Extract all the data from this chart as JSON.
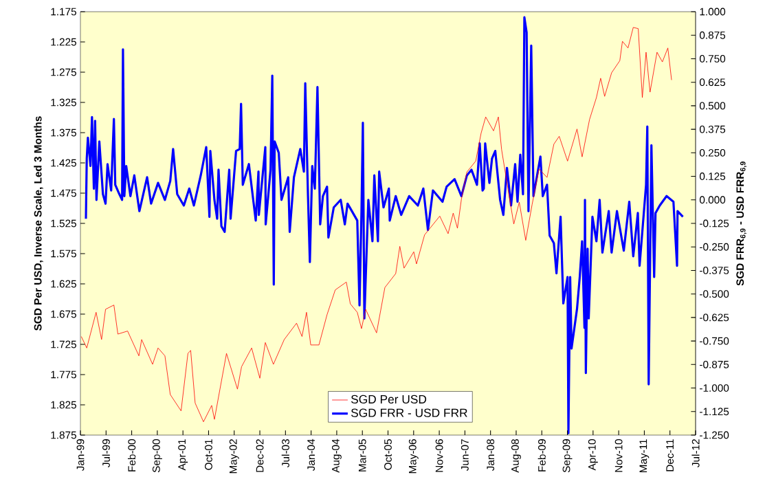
{
  "chart_data": {
    "type": "line",
    "ylabel": "SGD Per USD, Inverse Scale, Led 3 Months",
    "y2label": "SGD FRR$_{6,9}$ - USD FRR$_{6,9}$",
    "legend": "bottom",
    "xlim": [
      "1999-01-01",
      "2012-07-15"
    ],
    "xticks": [
      {
        "value": "1999-01-01",
        "label": "Jan-99"
      },
      {
        "value": "1999-07-26",
        "label": "Jul-99"
      },
      {
        "value": "2000-02-17",
        "label": "Feb-00"
      },
      {
        "value": "2000-09-10",
        "label": "Sep-00"
      },
      {
        "value": "2001-04-04",
        "label": "Apr-01"
      },
      {
        "value": "2001-10-27",
        "label": "Oct-01"
      },
      {
        "value": "2002-05-21",
        "label": "May-02"
      },
      {
        "value": "2002-12-13",
        "label": "Dec-02"
      },
      {
        "value": "2003-07-07",
        "label": "Jul-03"
      },
      {
        "value": "2004-01-29",
        "label": "Jan-04"
      },
      {
        "value": "2004-08-22",
        "label": "Aug-04"
      },
      {
        "value": "2005-03-16",
        "label": "Mar-05"
      },
      {
        "value": "2005-10-08",
        "label": "Oct-05"
      },
      {
        "value": "2006-05-02",
        "label": "May-06"
      },
      {
        "value": "2006-11-24",
        "label": "Nov-06"
      },
      {
        "value": "2007-06-18",
        "label": "Jun-07"
      },
      {
        "value": "2008-01-10",
        "label": "Jan-08"
      },
      {
        "value": "2008-08-03",
        "label": "Aug-08"
      },
      {
        "value": "2009-02-25",
        "label": "Feb-09"
      },
      {
        "value": "2009-09-19",
        "label": "Sep-09"
      },
      {
        "value": "2010-04-13",
        "label": "Apr-10"
      },
      {
        "value": "2010-11-05",
        "label": "Nov-10"
      },
      {
        "value": "2011-05-30",
        "label": "May-11"
      },
      {
        "value": "2011-12-22",
        "label": "Dec-11"
      },
      {
        "value": "2012-07-15",
        "label": "Jul-12"
      }
    ],
    "ylim": [
      1.875,
      1.175
    ],
    "yticks": [
      1.175,
      1.225,
      1.275,
      1.325,
      1.375,
      1.425,
      1.475,
      1.525,
      1.575,
      1.625,
      1.675,
      1.725,
      1.775,
      1.825,
      1.875
    ],
    "y2lim": [
      -1.25,
      1.0
    ],
    "y2ticks": [
      {
        "value": 1.0,
        "label": "1.000"
      },
      {
        "value": 0.875,
        "label": "0.875"
      },
      {
        "value": 0.75,
        "label": "0.750"
      },
      {
        "value": 0.625,
        "label": "0.625"
      },
      {
        "value": 0.5,
        "label": "0.500"
      },
      {
        "value": 0.375,
        "label": "0.375"
      },
      {
        "value": 0.25,
        "label": "0.250"
      },
      {
        "value": 0.125,
        "label": "0.125"
      },
      {
        "value": 0.0,
        "label": "0.000"
      },
      {
        "value": -0.125,
        "label": "-0.125"
      },
      {
        "value": -0.25,
        "label": "-0.250"
      },
      {
        "value": -0.375,
        "label": "-0.375"
      },
      {
        "value": -0.5,
        "label": "-0.500"
      },
      {
        "value": -0.625,
        "label": "-0.625"
      },
      {
        "value": -0.75,
        "label": "-0.750"
      },
      {
        "value": -0.875,
        "label": "-0.875"
      },
      {
        "value": -1.0,
        "label": "-1.000"
      },
      {
        "value": -1.125,
        "label": "-1.125"
      },
      {
        "value": -1.25,
        "label": "-1.250"
      }
    ],
    "series": [
      {
        "name": "SGD Per USD",
        "color": "#ff0000",
        "x": [
          "1999-01-08",
          "1999-02-21",
          "1999-05-07",
          "1999-06-20",
          "1999-07-22",
          "1999-09-27",
          "1999-10-29",
          "2000-01-15",
          "2000-04-15",
          "2000-05-07",
          "2000-08-03",
          "2000-09-16",
          "2000-11-10",
          "2000-12-23",
          "2001-03-20",
          "2001-05-14",
          "2001-06-05",
          "2001-07-11",
          "2001-09-16",
          "2001-11-21",
          "2001-12-13",
          "2002-03-20",
          "2002-06-16",
          "2002-07-19",
          "2002-10-08",
          "2002-12-13",
          "2003-01-26",
          "2003-04-01",
          "2003-06-27",
          "2003-10-04",
          "2003-11-17",
          "2003-12-23",
          "2004-01-26",
          "2004-04-01",
          "2004-06-05",
          "2004-08-10",
          "2004-11-07",
          "2004-12-09",
          "2005-02-03",
          "2005-03-09",
          "2005-04-11",
          "2005-07-08",
          "2005-09-13",
          "2005-12-09",
          "2006-01-11",
          "2006-02-14",
          "2006-05-03",
          "2006-05-25",
          "2006-07-29",
          "2006-11-28",
          "2007-02-03",
          "2007-03-16",
          "2007-04-19",
          "2007-05-21",
          "2007-07-04",
          "2007-09-13",
          "2007-10-26",
          "2007-12-02",
          "2008-02-03",
          "2008-03-13",
          "2008-04-08",
          "2008-05-21",
          "2008-07-15",
          "2008-08-28",
          "2008-10-19",
          "2008-12-09",
          "2009-02-03",
          "2009-04-08",
          "2009-06-02",
          "2009-07-15",
          "2009-09-20",
          "2009-12-05",
          "2010-01-15",
          "2010-03-16",
          "2010-05-10",
          "2010-06-13",
          "2010-07-15",
          "2010-09-09",
          "2010-11-14",
          "2010-12-05",
          "2011-01-19",
          "2011-03-02",
          "2011-04-11",
          "2011-05-14",
          "2011-06-13",
          "2011-07-15",
          "2011-09-09",
          "2011-10-22",
          "2011-12-05",
          "2012-01-04"
        ],
        "values": [
          1.712,
          1.731,
          1.672,
          1.717,
          1.667,
          1.66,
          1.708,
          1.703,
          1.744,
          1.717,
          1.758,
          1.731,
          1.744,
          1.808,
          1.835,
          1.74,
          1.735,
          1.822,
          1.853,
          1.826,
          1.849,
          1.74,
          1.799,
          1.762,
          1.731,
          1.781,
          1.722,
          1.758,
          1.717,
          1.69,
          1.712,
          1.672,
          1.726,
          1.726,
          1.676,
          1.635,
          1.622,
          1.658,
          1.672,
          1.699,
          1.667,
          1.706,
          1.631,
          1.608,
          1.563,
          1.599,
          1.572,
          1.592,
          1.544,
          1.513,
          1.542,
          1.508,
          1.533,
          1.485,
          1.44,
          1.422,
          1.376,
          1.349,
          1.372,
          1.349,
          1.403,
          1.458,
          1.526,
          1.49,
          1.553,
          1.494,
          1.435,
          1.449,
          1.394,
          1.381,
          1.422,
          1.369,
          1.415,
          1.353,
          1.317,
          1.285,
          1.315,
          1.276,
          1.256,
          1.224,
          1.235,
          1.201,
          1.203,
          1.317,
          1.242,
          1.308,
          1.242,
          1.258,
          1.235,
          1.288
        ]
      },
      {
        "name": "SGD FRR - USD FRR",
        "color": "#0000ff",
        "axis": "y2",
        "x": [
          "1999-02-14",
          "1999-02-21",
          "1999-03-02",
          "1999-03-23",
          "1999-04-04",
          "1999-04-19",
          "1999-04-29",
          "1999-05-10",
          "1999-06-02",
          "1999-07-01",
          "1999-07-22",
          "1999-08-07",
          "1999-09-05",
          "1999-09-27",
          "1999-10-08",
          "1999-11-10",
          "1999-12-02",
          "1999-12-09",
          "1999-12-20",
          "2000-01-04",
          "2000-02-07",
          "2000-03-09",
          "2000-04-19",
          "2000-06-20",
          "2000-07-22",
          "2000-09-16",
          "2000-11-10",
          "2000-12-23",
          "2001-01-15",
          "2001-02-17",
          "2001-04-11",
          "2001-05-25",
          "2001-07-01",
          "2001-08-25",
          "2001-10-08",
          "2001-11-03",
          "2001-11-10",
          "2001-12-13",
          "2002-01-04",
          "2002-01-15",
          "2002-02-07",
          "2002-03-05",
          "2002-04-11",
          "2002-04-22",
          "2002-06-05",
          "2002-07-04",
          "2002-07-15",
          "2002-07-29",
          "2002-09-16",
          "2002-11-10",
          "2002-12-02",
          "2002-12-05",
          "2003-01-26",
          "2003-01-29",
          "2003-03-09",
          "2003-03-23",
          "2003-04-04",
          "2003-04-11",
          "2003-05-14",
          "2003-06-05",
          "2003-07-29",
          "2003-08-10",
          "2003-09-13",
          "2003-11-03",
          "2003-12-02",
          "2003-12-13",
          "2004-01-04",
          "2004-01-19",
          "2004-02-07",
          "2004-02-28",
          "2004-03-20",
          "2004-04-11",
          "2004-05-03",
          "2004-06-05",
          "2004-06-16",
          "2004-07-29",
          "2004-09-23",
          "2004-10-26",
          "2004-11-17",
          "2005-02-03",
          "2005-02-21",
          "2005-03-09",
          "2005-03-20",
          "2005-04-01",
          "2005-05-03",
          "2005-06-05",
          "2005-06-20",
          "2005-07-19",
          "2005-07-29",
          "2005-09-02",
          "2005-10-15",
          "2005-10-22",
          "2005-12-09",
          "2006-01-22",
          "2006-03-27",
          "2006-06-05",
          "2006-07-19",
          "2006-08-25",
          "2006-10-04",
          "2006-12-20",
          "2007-01-22",
          "2007-03-27",
          "2007-05-21",
          "2007-07-04",
          "2007-08-10",
          "2007-09-23",
          "2007-10-15",
          "2007-11-07",
          "2007-11-17",
          "2007-11-28",
          "2008-01-01",
          "2008-01-22",
          "2008-02-17",
          "2008-03-27",
          "2008-04-22",
          "2008-05-21",
          "2008-06-23",
          "2008-07-26",
          "2008-08-14",
          "2008-09-05",
          "2008-09-27",
          "2008-10-08",
          "2008-10-26",
          "2008-11-10",
          "2008-12-02",
          "2008-12-20",
          "2009-02-14",
          "2009-03-05",
          "2009-04-08",
          "2009-04-29",
          "2009-06-02",
          "2009-06-23",
          "2009-07-26",
          "2009-08-17",
          "2009-09-20",
          "2009-09-27",
          "2009-10-11",
          "2009-10-22",
          "2009-12-05",
          "2009-12-27",
          "2010-01-15",
          "2010-02-03",
          "2010-02-07",
          "2010-02-14",
          "2010-02-28",
          "2010-03-09",
          "2010-04-08",
          "2010-05-10",
          "2010-06-05",
          "2010-06-27",
          "2010-08-17",
          "2010-09-09",
          "2010-10-22",
          "2010-12-16",
          "2011-01-29",
          "2011-03-02",
          "2011-04-08",
          "2011-04-22",
          "2011-06-13",
          "2011-06-23",
          "2011-07-04",
          "2011-07-26",
          "2011-08-17",
          "2011-08-28",
          "2011-10-01",
          "2011-11-25",
          "2012-01-19",
          "2012-02-17",
          "2012-02-21",
          "2012-04-04"
        ],
        "values": [
          -0.1,
          0.22,
          0.33,
          0.18,
          0.44,
          0.06,
          0.42,
          0.0,
          0.31,
          0.03,
          -0.02,
          0.19,
          0.05,
          0.43,
          0.08,
          0.03,
          0.0,
          0.8,
          0.02,
          0.18,
          0.02,
          0.13,
          -0.06,
          0.12,
          -0.02,
          0.09,
          0.0,
          0.1,
          0.27,
          0.03,
          -0.03,
          0.06,
          -0.03,
          0.13,
          0.28,
          -0.09,
          0.26,
          0.0,
          -0.1,
          0.16,
          -0.14,
          -0.17,
          0.16,
          -0.1,
          0.26,
          0.27,
          0.51,
          0.08,
          0.19,
          -0.11,
          0.15,
          -0.08,
          0.28,
          -0.13,
          0.16,
          0.66,
          -0.45,
          0.31,
          0.25,
          0.0,
          0.12,
          -0.17,
          0.12,
          0.27,
          0.15,
          0.62,
          0.02,
          -0.33,
          0.18,
          0.06,
          0.6,
          -0.13,
          0.02,
          0.07,
          -0.2,
          -0.04,
          0.0,
          -0.13,
          -0.02,
          -0.11,
          -0.56,
          -0.06,
          0.41,
          -0.63,
          0.0,
          -0.22,
          0.13,
          -0.22,
          0.15,
          -0.04,
          0.06,
          -0.11,
          0.02,
          -0.08,
          0.02,
          -0.03,
          0.06,
          -0.16,
          0.05,
          -0.01,
          0.07,
          0.11,
          0.02,
          0.13,
          0.16,
          0.08,
          0.3,
          0.05,
          0.06,
          0.3,
          0.09,
          0.22,
          0.26,
          0.0,
          -0.08,
          0.17,
          -0.03,
          0.19,
          -0.01,
          0.24,
          0.03,
          0.97,
          0.89,
          -0.06,
          0.82,
          0.02,
          0.23,
          0.02,
          0.08,
          -0.19,
          -0.23,
          -0.39,
          -0.09,
          -0.55,
          -0.41,
          -1.24,
          -0.41,
          -0.79,
          -0.58,
          -0.41,
          -0.22,
          -0.68,
          0.0,
          -0.92,
          -0.26,
          -0.63,
          -0.09,
          -0.22,
          0.0,
          -0.28,
          -0.06,
          -0.28,
          -0.06,
          -0.27,
          -0.01,
          -0.3,
          -0.07,
          -0.35,
          0.08,
          0.39,
          -0.98,
          0.29,
          -0.41,
          -0.07,
          -0.03,
          0.02,
          -0.01,
          -0.35,
          -0.06,
          -0.09
        ]
      }
    ]
  }
}
